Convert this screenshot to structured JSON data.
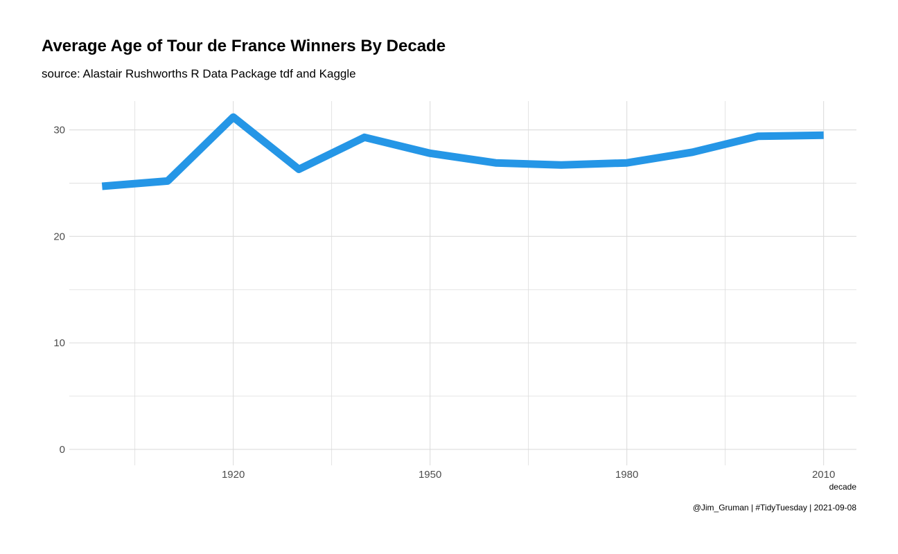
{
  "chart_data": {
    "type": "line",
    "title": "Average Age of Tour de France Winners By Decade",
    "subtitle": "source: Alastair Rushworths R Data Package tdf and Kaggle",
    "caption": "@Jim_Gruman | #TidyTuesday | 2021-09-08",
    "xlabel": "decade",
    "ylabel": "",
    "x": [
      1900,
      1910,
      1920,
      1930,
      1940,
      1950,
      1960,
      1970,
      1980,
      1990,
      2000,
      2010
    ],
    "series": [
      {
        "values": [
          24.7,
          25.2,
          31.2,
          26.3,
          29.3,
          27.8,
          26.9,
          26.7,
          26.9,
          27.9,
          29.4,
          29.5
        ]
      }
    ],
    "xlim": [
      1895,
      2015
    ],
    "ylim": [
      -1.5,
      32.7
    ],
    "xticks": [
      1920,
      1950,
      1980,
      2010
    ],
    "yticks": [
      0,
      10,
      20,
      30
    ],
    "grid": true,
    "legend": "none",
    "line_color": "#2596e6",
    "grid_color": "#dcdcdc"
  }
}
